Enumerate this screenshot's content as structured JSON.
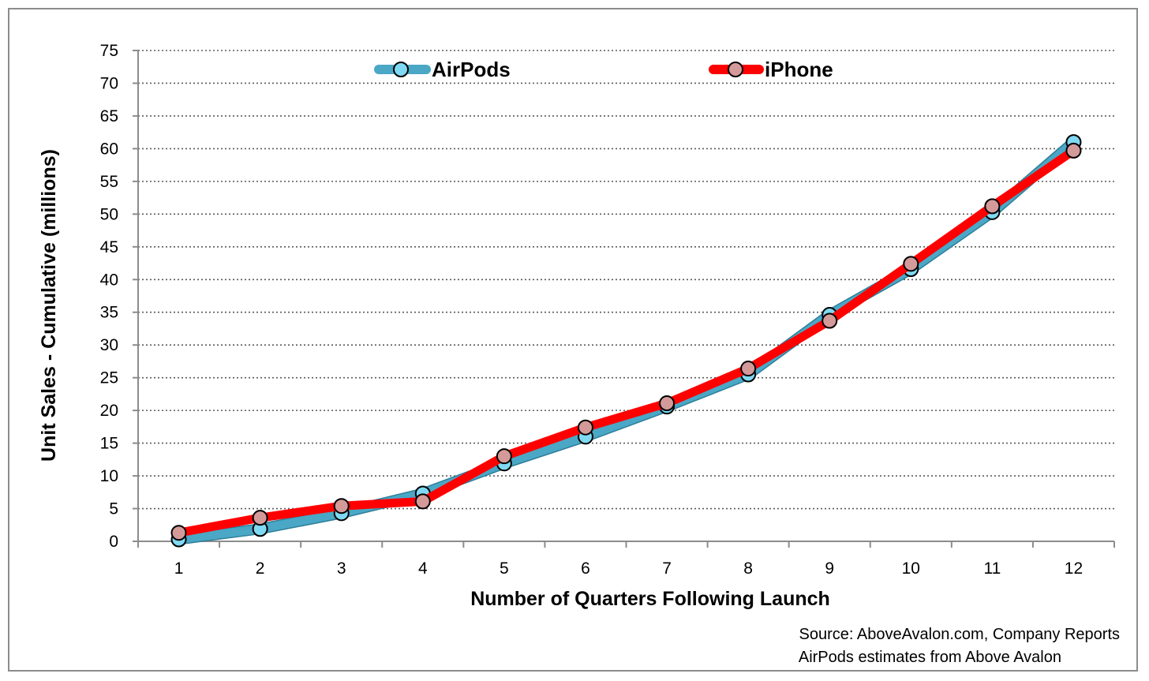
{
  "chart_data": {
    "type": "line",
    "title": "",
    "xlabel": "Number of Quarters Following Launch",
    "ylabel": "Unit Sales - Cumulative (millions)",
    "x": [
      1,
      2,
      3,
      4,
      5,
      6,
      7,
      8,
      9,
      10,
      11,
      12
    ],
    "ylim": [
      0,
      75
    ],
    "yticks": [
      0,
      5,
      10,
      15,
      20,
      25,
      30,
      35,
      40,
      45,
      50,
      55,
      60,
      65,
      70,
      75
    ],
    "grid": "horizontal dotted",
    "legend_position": "top",
    "series": [
      {
        "name": "AirPods",
        "values": [
          0.3,
          1.9,
          4.3,
          7.3,
          11.9,
          16.0,
          20.6,
          25.5,
          34.6,
          41.6,
          50.3,
          61.0
        ],
        "line_color": "#4aa7c6",
        "marker_color": "#7fd9f2"
      },
      {
        "name": "iPhone",
        "values": [
          1.3,
          3.6,
          5.4,
          6.1,
          13.0,
          17.4,
          21.1,
          26.4,
          33.7,
          42.4,
          51.2,
          59.7
        ],
        "line_color": "#ff0000",
        "marker_color": "#d49a9a"
      }
    ],
    "source_lines": [
      "Source: AboveAvalon.com, Company Reports",
      "AirPods estimates from Above Avalon"
    ]
  }
}
